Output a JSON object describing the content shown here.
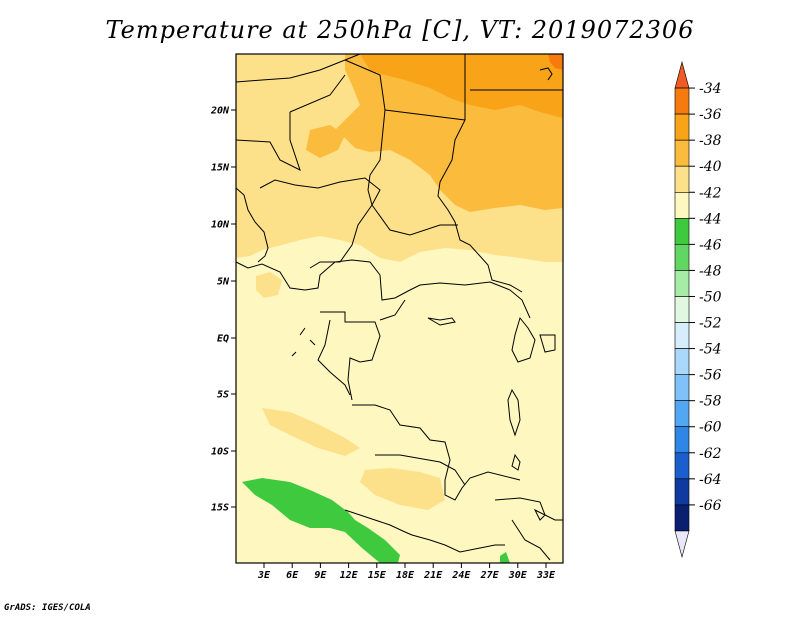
{
  "title": "Temperature at 250hPa [C], VT: 2019072306",
  "credit": "GrADS: IGES/COLA",
  "map": {
    "lat_labels": [
      "20N",
      "15N",
      "10N",
      "5N",
      "EQ",
      "5S",
      "10S",
      "15S"
    ],
    "lon_labels": [
      "3E",
      "6E",
      "9E",
      "12E",
      "15E",
      "18E",
      "21E",
      "24E",
      "27E",
      "30E",
      "33E"
    ]
  },
  "colorbar": {
    "labels": [
      "-34",
      "-36",
      "-38",
      "-40",
      "-42",
      "-44",
      "-46",
      "-48",
      "-50",
      "-52",
      "-54",
      "-56",
      "-58",
      "-60",
      "-62",
      "-64",
      "-66"
    ],
    "colors": [
      "#f05a24",
      "#f77a0e",
      "#f8a318",
      "#fbbb3c",
      "#fde08a",
      "#fff7c0",
      "#3ec93e",
      "#62d662",
      "#a6eca6",
      "#dff8df",
      "#d6eefc",
      "#a9d8fa",
      "#7fc1f8",
      "#52a7f3",
      "#2e86e6",
      "#1b5fcf",
      "#103aa0",
      "#0a1f70",
      "#e8e8f8"
    ]
  }
}
